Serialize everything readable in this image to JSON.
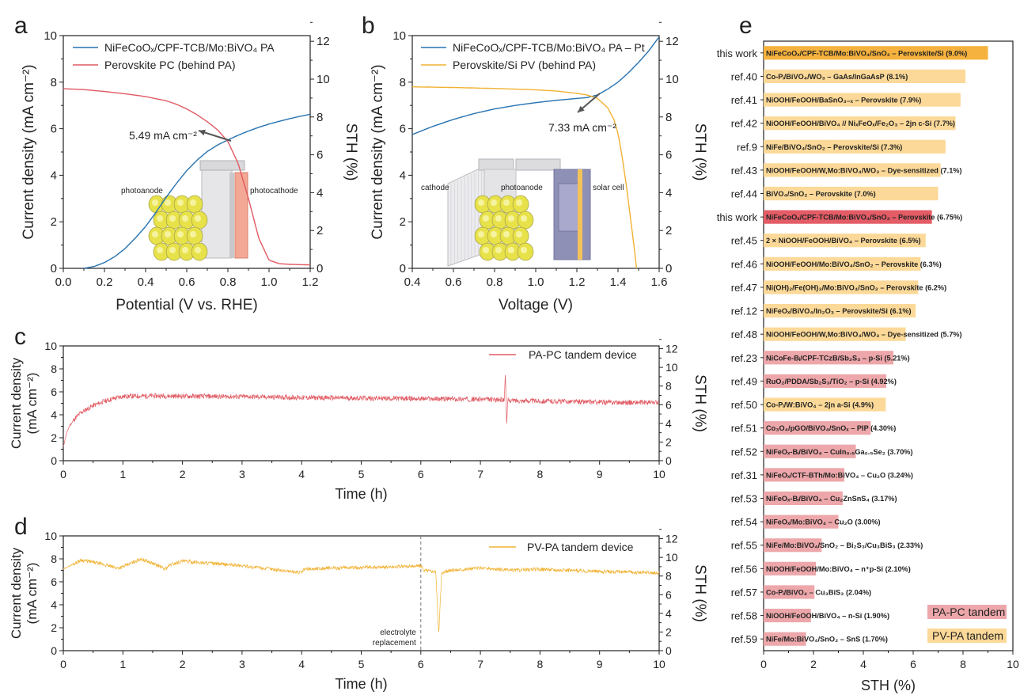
{
  "colors": {
    "blue": "#2672b0",
    "red": "#e05a63",
    "orange": "#f1b233",
    "pale_orange": "#fbdb9a",
    "pale_red": "#eda4a6",
    "arrow": "#555555",
    "this_work_pv": "#f6b23e",
    "this_work_pc": "#e45c66",
    "pv_bar": "#fcd998",
    "pc_bar": "#eda7aa"
  },
  "chart_data": [
    {
      "panel": "a",
      "type": "line",
      "xlabel": "Potential (V vs. RHE)",
      "ylabel": "Current density (mA cm⁻²)",
      "y2label": "STH (%)",
      "xlim": [
        0.0,
        1.2
      ],
      "ylim": [
        0,
        10
      ],
      "y2lim": [
        0,
        12.3
      ],
      "xticks": [
        "0.0",
        "0.2",
        "0.4",
        "0.6",
        "0.8",
        "1.0",
        "1.2"
      ],
      "yticks": [
        "0",
        "2",
        "4",
        "6",
        "8",
        "10"
      ],
      "y2ticks": [
        "0",
        "2",
        "4",
        "6",
        "8",
        "10",
        "12"
      ],
      "legend": [
        "NiFeCoOₓ/CPF-TCB/Mo:BiVO₄ PA",
        "Perovskite PC (behind PA)"
      ],
      "annotation": "5.49 mA cm⁻²",
      "inset_labels": [
        "photoanode",
        "photocathode"
      ],
      "series": [
        {
          "name": "NiFeCoOₓ/CPF-TCB/Mo:BiVO₄ PA",
          "color": "blue",
          "x": [
            0.1,
            0.15,
            0.2,
            0.25,
            0.3,
            0.35,
            0.4,
            0.45,
            0.5,
            0.55,
            0.6,
            0.65,
            0.7,
            0.75,
            0.8,
            0.85,
            0.9,
            0.95,
            1.0,
            1.05,
            1.1,
            1.15,
            1.2
          ],
          "y": [
            0.0,
            0.08,
            0.25,
            0.5,
            0.85,
            1.3,
            1.8,
            2.4,
            3.05,
            3.65,
            4.2,
            4.65,
            5.02,
            5.3,
            5.52,
            5.72,
            5.9,
            6.06,
            6.2,
            6.32,
            6.43,
            6.53,
            6.62
          ]
        },
        {
          "name": "Perovskite PC (behind PA)",
          "color": "red",
          "x": [
            0.0,
            0.1,
            0.2,
            0.3,
            0.4,
            0.5,
            0.55,
            0.6,
            0.65,
            0.7,
            0.75,
            0.8,
            0.85,
            0.9,
            0.95,
            1.0,
            1.05,
            1.1,
            1.2
          ],
          "y": [
            7.72,
            7.68,
            7.6,
            7.5,
            7.38,
            7.2,
            7.05,
            6.85,
            6.6,
            6.3,
            5.95,
            5.45,
            4.5,
            3.0,
            1.3,
            0.35,
            0.2,
            0.17,
            0.15
          ]
        }
      ]
    },
    {
      "panel": "b",
      "type": "line",
      "xlabel": "Voltage (V)",
      "ylabel": "Current density (mA cm⁻²)",
      "y2label": "STH (%)",
      "xlim": [
        0.4,
        1.6
      ],
      "ylim": [
        0,
        10
      ],
      "y2lim": [
        0,
        12.3
      ],
      "xticks": [
        "0.4",
        "0.6",
        "0.8",
        "1.0",
        "1.2",
        "1.4",
        "1.6"
      ],
      "yticks": [
        "0",
        "2",
        "4",
        "6",
        "8",
        "10"
      ],
      "y2ticks": [
        "0",
        "2",
        "4",
        "6",
        "8",
        "10",
        "12"
      ],
      "legend": [
        "NiFeCoOₓ/CPF-TCB/Mo:BiVO₄ PA – Pt",
        "Perovskite/Si PV (behind PA)"
      ],
      "annotation": "7.33 mA cm⁻²",
      "inset_labels": [
        "cathode",
        "photoanode",
        "solar cell"
      ],
      "series": [
        {
          "name": "NiFeCoOₓ/CPF-TCB/Mo:BiVO₄ PA – Pt",
          "color": "blue",
          "x": [
            0.4,
            0.5,
            0.6,
            0.7,
            0.8,
            0.9,
            1.0,
            1.1,
            1.2,
            1.25,
            1.3,
            1.35,
            1.4,
            1.45,
            1.5,
            1.55,
            1.6
          ],
          "y": [
            5.75,
            6.1,
            6.4,
            6.65,
            6.85,
            7.0,
            7.12,
            7.22,
            7.3,
            7.34,
            7.45,
            7.7,
            8.0,
            8.4,
            8.85,
            9.35,
            9.95
          ]
        },
        {
          "name": "Perovskite/Si PV (behind PA)",
          "color": "orange",
          "x": [
            0.4,
            0.6,
            0.8,
            1.0,
            1.1,
            1.2,
            1.25,
            1.3,
            1.35,
            1.38,
            1.4,
            1.42,
            1.44,
            1.46,
            1.48,
            1.49
          ],
          "y": [
            7.8,
            7.77,
            7.73,
            7.67,
            7.62,
            7.52,
            7.45,
            7.3,
            6.9,
            6.4,
            5.8,
            4.8,
            3.6,
            2.2,
            0.8,
            0.0
          ]
        }
      ]
    },
    {
      "panel": "c",
      "type": "line",
      "xlabel": "Time (h)",
      "ylabel_lines": [
        "Current density",
        "(mA cm⁻²)"
      ],
      "y2label": "STH (%)",
      "xlim": [
        0,
        10
      ],
      "ylim": [
        0,
        10
      ],
      "y2lim": [
        0,
        12.3
      ],
      "xticks": [
        "0",
        "1",
        "2",
        "3",
        "4",
        "5",
        "6",
        "7",
        "8",
        "9",
        "10"
      ],
      "yticks": [
        "0",
        "2",
        "4",
        "6",
        "8",
        "10"
      ],
      "y2ticks": [
        "0",
        "2",
        "4",
        "6",
        "8",
        "10",
        "12"
      ],
      "legend": [
        "PA-PC tandem device"
      ],
      "series": [
        {
          "name": "PA-PC tandem device",
          "color": "red",
          "x": [
            0,
            0.05,
            0.1,
            0.2,
            0.3,
            0.5,
            0.7,
            0.9,
            1.0,
            1.5,
            2.0,
            2.5,
            3.0,
            4.0,
            5.0,
            6.0,
            7.0,
            7.4,
            7.42,
            7.44,
            7.46,
            7.5,
            8.0,
            9.0,
            10.0
          ],
          "y": [
            1.2,
            2.3,
            3.0,
            3.7,
            4.2,
            4.8,
            5.2,
            5.5,
            5.6,
            5.65,
            5.62,
            5.6,
            5.58,
            5.5,
            5.45,
            5.4,
            5.35,
            5.3,
            7.7,
            2.9,
            5.3,
            5.25,
            5.2,
            5.1,
            5.05
          ]
        }
      ]
    },
    {
      "panel": "d",
      "type": "line",
      "xlabel": "Time (h)",
      "ylabel_lines": [
        "Current density",
        "(mA cm⁻²)"
      ],
      "y2label": "STH (%)",
      "xlim": [
        0,
        10
      ],
      "ylim": [
        0,
        10
      ],
      "y2lim": [
        0,
        12.3
      ],
      "xticks": [
        "0",
        "1",
        "2",
        "3",
        "4",
        "5",
        "6",
        "7",
        "8",
        "9",
        "10"
      ],
      "yticks": [
        "0",
        "2",
        "4",
        "6",
        "8",
        "10"
      ],
      "y2ticks": [
        "0",
        "2",
        "4",
        "6",
        "8",
        "10",
        "12"
      ],
      "legend": [
        "PV-PA tandem device"
      ],
      "annotation_lines": [
        "electrolyte",
        "replacement"
      ],
      "annotation_x": 6,
      "series": [
        {
          "name": "PV-PA tandem device",
          "color": "orange",
          "x": [
            0,
            0.3,
            0.6,
            0.9,
            1.0,
            1.3,
            1.6,
            1.7,
            1.8,
            2.0,
            2.5,
            3.0,
            3.5,
            4.0,
            4.05,
            4.5,
            5.0,
            5.5,
            6.0,
            6.05,
            6.25,
            6.3,
            6.35,
            6.5,
            7.0,
            7.5,
            8.0,
            8.5,
            9.0,
            9.5,
            10.0
          ],
          "y": [
            7.1,
            7.9,
            7.6,
            7.2,
            7.3,
            8.0,
            7.4,
            7.1,
            7.5,
            7.8,
            7.6,
            7.4,
            7.1,
            6.8,
            7.1,
            7.2,
            7.25,
            7.3,
            7.4,
            7.0,
            6.9,
            1.4,
            6.8,
            7.0,
            7.2,
            7.0,
            7.1,
            7.0,
            6.9,
            6.85,
            6.75
          ]
        }
      ]
    },
    {
      "panel": "e",
      "type": "bar",
      "orientation": "horizontal",
      "xlabel": "STH (%)",
      "xlim": [
        0,
        10
      ],
      "xticks": [
        "0",
        "2",
        "4",
        "6",
        "8",
        "10"
      ],
      "legend": [
        "PA-PC tandem",
        "PV-PA tandem"
      ],
      "bars": [
        {
          "ref": "this work",
          "label": "NiFeCoOₓ/CPF-TCB/Mo:BiVO₄/SnO₂ – Perovskite/Si (9.0%)",
          "value": 9.0,
          "kind": "this_pv"
        },
        {
          "ref": "ref.40",
          "label": "Co-Pᵢ/BiVO₄/WO₃ – GaAs/InGaAsP (8.1%)",
          "value": 8.1,
          "kind": "pv"
        },
        {
          "ref": "ref.41",
          "label": "NiOOH/FeOOH/BaSnO₃₋ₓ – Perovskite (7.9%)",
          "value": 7.9,
          "kind": "pv"
        },
        {
          "ref": "ref.42",
          "label": "NiOOH/FeOOH/BiVO₄ // NiₓFeOₓ/Fe₂O₃ – 2jn c-Si (7.7%)",
          "value": 7.7,
          "kind": "pv"
        },
        {
          "ref": "ref.9",
          "label": "NiFe/BiVO₄/SnO₂ – Perovskite/Si (7.3%)",
          "value": 7.3,
          "kind": "pv"
        },
        {
          "ref": "ref.43",
          "label": "NiOOH/FeOOH/W,Mo:BiVO₄/WO₃ – Dye-sensitized (7.1%)",
          "value": 7.1,
          "kind": "pv"
        },
        {
          "ref": "ref.44",
          "label": "BiVO₄/SnO₂ – Perovskite (7.0%)",
          "value": 7.0,
          "kind": "pv"
        },
        {
          "ref": "this work",
          "label": "NiFeCoOₓ/CPF-TCB/Mo:BiVO₄/SnO₂ – Perovskite (6.75%)",
          "value": 6.75,
          "kind": "this_pc"
        },
        {
          "ref": "ref.45",
          "label": "2 × NiOOH/FeOOH/BiVO₄ – Perovskite (6.5%)",
          "value": 6.5,
          "kind": "pv"
        },
        {
          "ref": "ref.46",
          "label": "NiOOH/FeOOH/Mo:BiVO₄/SnO₂ – Perovskite (6.3%)",
          "value": 6.3,
          "kind": "pv"
        },
        {
          "ref": "ref.47",
          "label": "Ni(OH)₂/Fe(OH)₃/Mo:BiVO₄/SnO₂ – Perovskite (6.2%)",
          "value": 6.2,
          "kind": "pv"
        },
        {
          "ref": "ref.12",
          "label": "NiFeOₓ/BiVO₄/In₂O₃ – Perovskite/Si (6.1%)",
          "value": 6.1,
          "kind": "pv"
        },
        {
          "ref": "ref.48",
          "label": "NiOOH/FeOOH/W,Mo:BiVO₄/WO₃ – Dye-sensitized (5.7%)",
          "value": 5.7,
          "kind": "pv"
        },
        {
          "ref": "ref.23",
          "label": "NiCoFe-Bᵢ/CPF-TCzB/Sb₂S₃ – p-Si (5.21%)",
          "value": 5.21,
          "kind": "pc"
        },
        {
          "ref": "ref.49",
          "label": "RuO₂/PDDA/Sb₂S₃/TiO₂ – p-Si (4.92%)",
          "value": 4.92,
          "kind": "pc"
        },
        {
          "ref": "ref.50",
          "label": "Co-Pᵢ/W:BiVO₄ – 2jn a-Si (4.9%)",
          "value": 4.9,
          "kind": "pv"
        },
        {
          "ref": "ref.51",
          "label": "Co₃O₄/pGO/BiVO₄/SnOₓ – PIP (4.30%)",
          "value": 4.3,
          "kind": "pc"
        },
        {
          "ref": "ref.52",
          "label": "NiFeOₓ-Bᵢ/BiVO₄ – CuIn₀.₅Ga₀.₅Se₂ (3.70%)",
          "value": 3.7,
          "kind": "pc"
        },
        {
          "ref": "ref.31",
          "label": "NiFeOₓ/CTF-BTh/Mo:BiVO₄ – Cu₂O (3.24%)",
          "value": 3.24,
          "kind": "pc"
        },
        {
          "ref": "ref.53",
          "label": "NiFeOₓ-Bᵢ/BiVO₄ – Cu₂ZnSnS₄ (3.17%)",
          "value": 3.17,
          "kind": "pc"
        },
        {
          "ref": "ref.54",
          "label": "NiFeOₓ/Mo:BiVO₄ – Cu₂O (3.00%)",
          "value": 3.0,
          "kind": "pc"
        },
        {
          "ref": "ref.55",
          "label": "NiFe/Mo:BiVO₄/SnO₂ – Bi₂S₃/Cu₃BiS₃ (2.33%)",
          "value": 2.33,
          "kind": "pc"
        },
        {
          "ref": "ref.56",
          "label": "NiOOH/FeOOH/Mo:BiVO₄ – n⁺p-Si (2.10%)",
          "value": 2.1,
          "kind": "pc"
        },
        {
          "ref": "ref.57",
          "label": "Co-Pᵢ/BiVO₄ – Cu₃BiS₃ (2.04%)",
          "value": 2.04,
          "kind": "pc"
        },
        {
          "ref": "ref.58",
          "label": "NiOOH/FeOOH/BiVO₄ – n-Si (1.90%)",
          "value": 1.9,
          "kind": "pc"
        },
        {
          "ref": "ref.59",
          "label": "NiFe/Mo:BiVO₄/SnO₂ – SnS (1.70%)",
          "value": 1.7,
          "kind": "pc"
        }
      ]
    }
  ]
}
